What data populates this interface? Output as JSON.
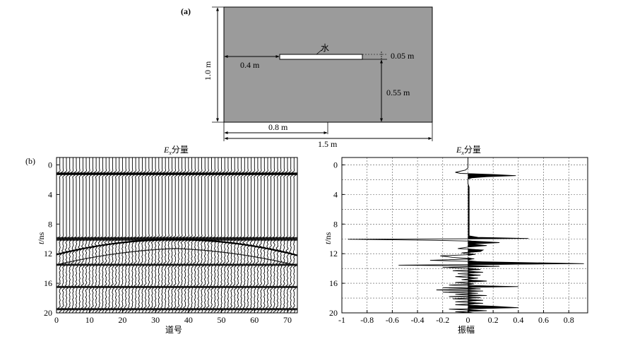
{
  "panel_a": {
    "label": "(a)",
    "water_label": "水",
    "dim_height": "1.0 m",
    "dim_offset": "0.4 m",
    "dim_thickness": "0.05 m",
    "dim_depth": "0.55 m",
    "dim_half": "0.8 m",
    "dim_width": "1.5 m",
    "background_fill": "#9b9b9b",
    "target_fill": "#ffffff"
  },
  "panel_b": {
    "label": "(b)",
    "left_title_italic": "E",
    "left_title_sub": "x",
    "left_title_rest": "分量",
    "right_title_italic": "E",
    "right_title_sub": "x",
    "right_title_rest": "分量",
    "ylabel_italic": "t",
    "ylabel_rest": "/ns",
    "left_xlabel": "道号",
    "right_xlabel": "振幅",
    "left_x_ticks": [
      "0",
      "10",
      "20",
      "30",
      "40",
      "50",
      "60",
      "70"
    ],
    "left_y_ticks": [
      "0",
      "4",
      "8",
      "12",
      "16",
      "20"
    ],
    "right_x_ticks": [
      "-1",
      "-0.8",
      "-0.6",
      "-0.4",
      "-0.2",
      "0",
      "0.2",
      "0.4",
      "0.6",
      "0.8"
    ],
    "right_y_ticks": [
      "0",
      "4",
      "8",
      "12",
      "16",
      "20"
    ]
  },
  "chart_data": [
    {
      "type": "heatmap",
      "title": "Ex分量",
      "xlabel": "道号",
      "ylabel": "t/ns",
      "xlim": [
        0,
        73
      ],
      "ylim": [
        20,
        -1
      ],
      "trace_count": 73,
      "reflection_times_ns": [
        1.2,
        10.0,
        13.5,
        16.5,
        19.5
      ],
      "hyperbola_apex": {
        "trace": 36,
        "time_ns": 10.0
      }
    },
    {
      "type": "line",
      "title": "Ex分量",
      "xlabel": "振幅",
      "ylabel": "t/ns",
      "xlim": [
        -1,
        0.95
      ],
      "ylim": [
        20,
        -1
      ],
      "grid": true,
      "series": [
        {
          "points": [
            [
              0,
              -1
            ],
            [
              0,
              0.4
            ],
            [
              -0.02,
              0.7
            ],
            [
              -0.1,
              1.0
            ],
            [
              -0.06,
              1.15
            ],
            [
              0.2,
              1.3
            ],
            [
              0.38,
              1.45
            ],
            [
              0.15,
              1.6
            ],
            [
              0.03,
              1.75
            ],
            [
              0,
              1.9
            ],
            [
              0,
              2.5
            ],
            [
              0.01,
              3.0
            ],
            [
              0.01,
              4.0
            ],
            [
              0.01,
              5.0
            ],
            [
              0.01,
              6.0
            ],
            [
              0.01,
              7.0
            ],
            [
              0.01,
              8.0
            ],
            [
              0.01,
              9.0
            ],
            [
              0.01,
              9.6
            ],
            [
              0.08,
              9.8
            ],
            [
              0.48,
              9.95
            ],
            [
              -0.95,
              10.05
            ],
            [
              -0.25,
              10.2
            ],
            [
              0.05,
              10.3
            ],
            [
              0.25,
              10.5
            ],
            [
              0.02,
              10.7
            ],
            [
              0.15,
              10.9
            ],
            [
              0,
              11.1
            ],
            [
              -0.08,
              11.3
            ],
            [
              0.12,
              11.5
            ],
            [
              0.1,
              11.7
            ],
            [
              -0.05,
              11.9
            ],
            [
              0.06,
              12.1
            ],
            [
              -0.22,
              12.3
            ],
            [
              -0.12,
              12.5
            ],
            [
              0.05,
              12.7
            ],
            [
              -0.3,
              12.9
            ],
            [
              0.12,
              13.1
            ],
            [
              0.92,
              13.35
            ],
            [
              -0.55,
              13.55
            ],
            [
              0.25,
              13.7
            ],
            [
              -0.2,
              13.85
            ],
            [
              0.02,
              14.0
            ],
            [
              0.1,
              14.15
            ],
            [
              -0.12,
              14.3
            ],
            [
              0.12,
              14.5
            ],
            [
              -0.08,
              14.7
            ],
            [
              0.1,
              14.9
            ],
            [
              -0.1,
              15.1
            ],
            [
              0.08,
              15.3
            ],
            [
              -0.05,
              15.5
            ],
            [
              0.15,
              15.7
            ],
            [
              -0.1,
              15.9
            ],
            [
              0.05,
              16.1
            ],
            [
              -0.15,
              16.25
            ],
            [
              0.4,
              16.45
            ],
            [
              -0.2,
              16.6
            ],
            [
              0.1,
              16.75
            ],
            [
              -0.25,
              16.9
            ],
            [
              0.12,
              17.05
            ],
            [
              -0.2,
              17.2
            ],
            [
              0.08,
              17.35
            ],
            [
              -0.1,
              17.5
            ],
            [
              0.15,
              17.65
            ],
            [
              -0.15,
              17.8
            ],
            [
              0.1,
              17.95
            ],
            [
              -0.12,
              18.1
            ],
            [
              0.12,
              18.3
            ],
            [
              -0.1,
              18.5
            ],
            [
              0.12,
              18.7
            ],
            [
              -0.1,
              18.9
            ],
            [
              0.2,
              19.1
            ],
            [
              0.4,
              19.3
            ],
            [
              -0.15,
              19.5
            ],
            [
              0.15,
              19.7
            ],
            [
              -0.1,
              19.85
            ],
            [
              0.05,
              20.0
            ]
          ]
        }
      ]
    }
  ]
}
